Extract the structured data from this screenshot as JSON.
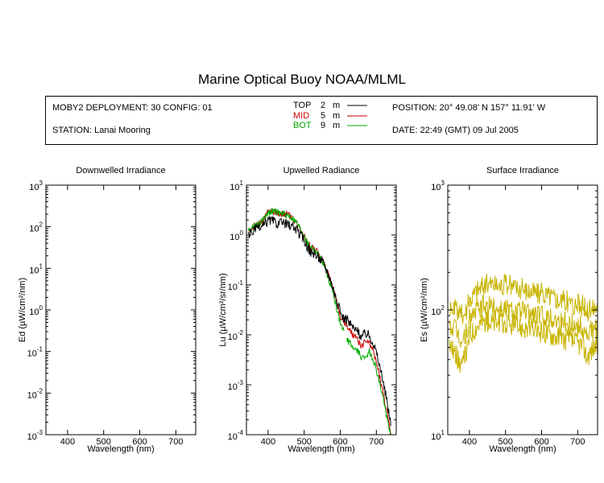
{
  "header": {
    "title": "Marine Optical Buoy NOAA/MLML",
    "deployment": "MOBY2 DEPLOYMENT: 30 CONFIG: 01",
    "station": "STATION: Lanai Mooring",
    "position": "POSITION: 20° 49.08' N   157° 11.91' W",
    "date": "DATE: 22:49 (GMT) 09 Jul 2005",
    "legend": [
      {
        "name": "TOP",
        "depth": "2",
        "unit": "m",
        "color": "#000000"
      },
      {
        "name": "MID",
        "depth": "5",
        "unit": "m",
        "color": "#cc0000"
      },
      {
        "name": "BOT",
        "depth": "9",
        "unit": "m",
        "color": "#00aa00"
      }
    ]
  },
  "chart_data": [
    {
      "type": "line",
      "title": "Downwelled Irradiance",
      "xlabel": "Wavelength (nm)",
      "ylabel": "Ed  (µW/cm²/nm)",
      "xlim": [
        340,
        755
      ],
      "ylim": [
        0.001,
        1000
      ],
      "yscale": "log",
      "xticks": [
        400,
        500,
        600,
        700
      ],
      "yticks": [
        {
          "value": 0.001,
          "base": "10",
          "exp": "-3"
        },
        {
          "value": 0.01,
          "base": "10",
          "exp": "-2"
        },
        {
          "value": 0.1,
          "base": "10",
          "exp": "-1"
        },
        {
          "value": 1,
          "base": "10",
          "exp": "0"
        },
        {
          "value": 10,
          "base": "10",
          "exp": "1"
        },
        {
          "value": 100,
          "base": "10",
          "exp": "2"
        },
        {
          "value": 1000,
          "base": "10",
          "exp": "3"
        }
      ],
      "series": []
    },
    {
      "type": "line",
      "title": "Upwelled Radiance",
      "xlabel": "Wavelength (nm)",
      "ylabel": "Lu  (µW/cm²/sr/nm)",
      "xlim": [
        340,
        755
      ],
      "ylim": [
        0.0001,
        10
      ],
      "yscale": "log",
      "xticks": [
        400,
        500,
        600,
        700
      ],
      "yticks": [
        {
          "value": 0.0001,
          "base": "10",
          "exp": "-4"
        },
        {
          "value": 0.001,
          "base": "10",
          "exp": "-3"
        },
        {
          "value": 0.01,
          "base": "10",
          "exp": "-2"
        },
        {
          "value": 0.1,
          "base": "10",
          "exp": "-1"
        },
        {
          "value": 1,
          "base": "10",
          "exp": "0"
        },
        {
          "value": 10,
          "base": "10",
          "exp": "1"
        }
      ],
      "series": [
        {
          "color": "#cc0000",
          "noise": 0.07,
          "x": [
            345,
            355,
            365,
            375,
            385,
            395,
            400,
            410,
            420,
            430,
            440,
            450,
            460,
            470,
            480,
            490,
            500,
            510,
            520,
            530,
            540,
            550,
            560,
            570,
            580,
            590,
            600,
            610,
            620,
            630,
            640,
            650,
            660,
            670,
            680,
            690,
            700,
            710,
            720,
            730,
            740
          ],
          "y": [
            1.2,
            1.4,
            1.6,
            1.7,
            2.0,
            2.6,
            2.8,
            3.0,
            2.9,
            2.7,
            2.7,
            2.6,
            2.4,
            2.1,
            1.7,
            1.3,
            1.0,
            0.65,
            0.58,
            0.5,
            0.42,
            0.32,
            0.22,
            0.14,
            0.085,
            0.045,
            0.024,
            0.018,
            0.014,
            0.011,
            0.009,
            0.0075,
            0.0058,
            0.0075,
            0.0068,
            0.0048,
            0.0028,
            0.0014,
            0.0006,
            0.00025,
            0.0001
          ]
        },
        {
          "color": "#00aa00",
          "noise": 0.07,
          "x": [
            345,
            355,
            365,
            375,
            385,
            395,
            400,
            410,
            420,
            430,
            440,
            450,
            460,
            470,
            480,
            490,
            500,
            510,
            520,
            530,
            540,
            550,
            560,
            570,
            580,
            590,
            600,
            610
          ],
          "y": [
            1.2,
            1.4,
            1.6,
            1.7,
            2.0,
            2.6,
            2.8,
            3.0,
            2.9,
            2.7,
            2.7,
            2.6,
            2.4,
            2.1,
            1.7,
            1.3,
            1.0,
            0.65,
            0.58,
            0.5,
            0.4,
            0.3,
            0.2,
            0.12,
            0.07,
            0.035,
            0.017,
            0.012
          ]
        },
        {
          "color": "#00aa00",
          "noise": 0.07,
          "x": [
            618,
            625,
            630,
            640,
            650,
            660,
            665,
            670,
            680,
            690,
            700,
            710,
            720,
            730,
            740
          ],
          "y": [
            0.008,
            0.007,
            0.0062,
            0.0052,
            0.0045,
            0.0036,
            0.0034,
            0.0038,
            0.0045,
            0.0035,
            0.002,
            0.001,
            0.0005,
            0.0002,
            0.0001
          ]
        },
        {
          "color": "#000000",
          "noise": 0.1,
          "x": [
            345,
            355,
            365,
            375,
            385,
            395,
            400,
            410,
            420,
            430,
            440,
            450,
            460,
            470,
            480,
            490,
            500,
            510,
            520,
            530,
            540,
            550,
            560,
            570,
            580,
            590,
            600,
            610,
            620,
            630,
            640,
            650,
            660,
            670,
            680,
            690,
            700,
            710,
            720,
            730,
            740
          ],
          "y": [
            1.0,
            1.15,
            1.3,
            1.35,
            1.5,
            1.8,
            2.0,
            2.0,
            1.8,
            1.7,
            1.75,
            1.7,
            1.6,
            1.45,
            1.2,
            1.0,
            0.8,
            0.55,
            0.45,
            0.4,
            0.36,
            0.3,
            0.22,
            0.15,
            0.09,
            0.05,
            0.028,
            0.022,
            0.019,
            0.016,
            0.013,
            0.011,
            0.0095,
            0.011,
            0.01,
            0.0075,
            0.0045,
            0.0022,
            0.001,
            0.00045,
            0.00015
          ]
        }
      ]
    },
    {
      "type": "line",
      "title": "Surface Irradiance",
      "xlabel": "Wavelength (nm)",
      "ylabel": "Es  (µW/cm²/nm)",
      "xlim": [
        340,
        755
      ],
      "ylim": [
        10,
        1000
      ],
      "yscale": "log",
      "xticks": [
        400,
        500,
        600,
        700
      ],
      "yticks": [
        {
          "value": 10,
          "base": "10",
          "exp": "1"
        },
        {
          "value": 100,
          "base": "10",
          "exp": "2"
        },
        {
          "value": 1000,
          "base": "10",
          "exp": "3"
        }
      ],
      "series": [
        {
          "color": "#c8b400",
          "noise": 0.09,
          "x": [
            345,
            360,
            380,
            395,
            400,
            420,
            440,
            460,
            480,
            500,
            520,
            540,
            560,
            580,
            600,
            620,
            640,
            660,
            680,
            700,
            715,
            725,
            735,
            745,
            755
          ],
          "y": [
            95,
            100,
            90,
            105,
            120,
            145,
            160,
            165,
            158,
            160,
            155,
            150,
            145,
            140,
            135,
            132,
            125,
            118,
            115,
            110,
            108,
            95,
            100,
            105,
            108
          ]
        },
        {
          "color": "#c8b400",
          "noise": 0.09,
          "x": [
            345,
            360,
            380,
            395,
            400,
            420,
            440,
            460,
            480,
            500,
            520,
            540,
            560,
            580,
            600,
            620,
            640,
            660,
            680,
            700,
            715,
            725,
            735,
            745,
            755
          ],
          "y": [
            75,
            70,
            55,
            70,
            85,
            100,
            108,
            106,
            104,
            103,
            100,
            98,
            95,
            93,
            90,
            88,
            84,
            80,
            78,
            74,
            72,
            62,
            66,
            70,
            72
          ]
        },
        {
          "color": "#c8b400",
          "noise": 0.09,
          "x": [
            345,
            360,
            380,
            395,
            400,
            420,
            440,
            460,
            480,
            500,
            520,
            540,
            560,
            580,
            600,
            620,
            640,
            660,
            680,
            700,
            715,
            725,
            735,
            745,
            755
          ],
          "y": [
            55,
            45,
            35,
            50,
            62,
            75,
            82,
            80,
            78,
            76,
            75,
            73,
            71,
            69,
            67,
            65,
            62,
            59,
            57,
            54,
            52,
            42,
            46,
            50,
            52
          ]
        }
      ]
    }
  ]
}
